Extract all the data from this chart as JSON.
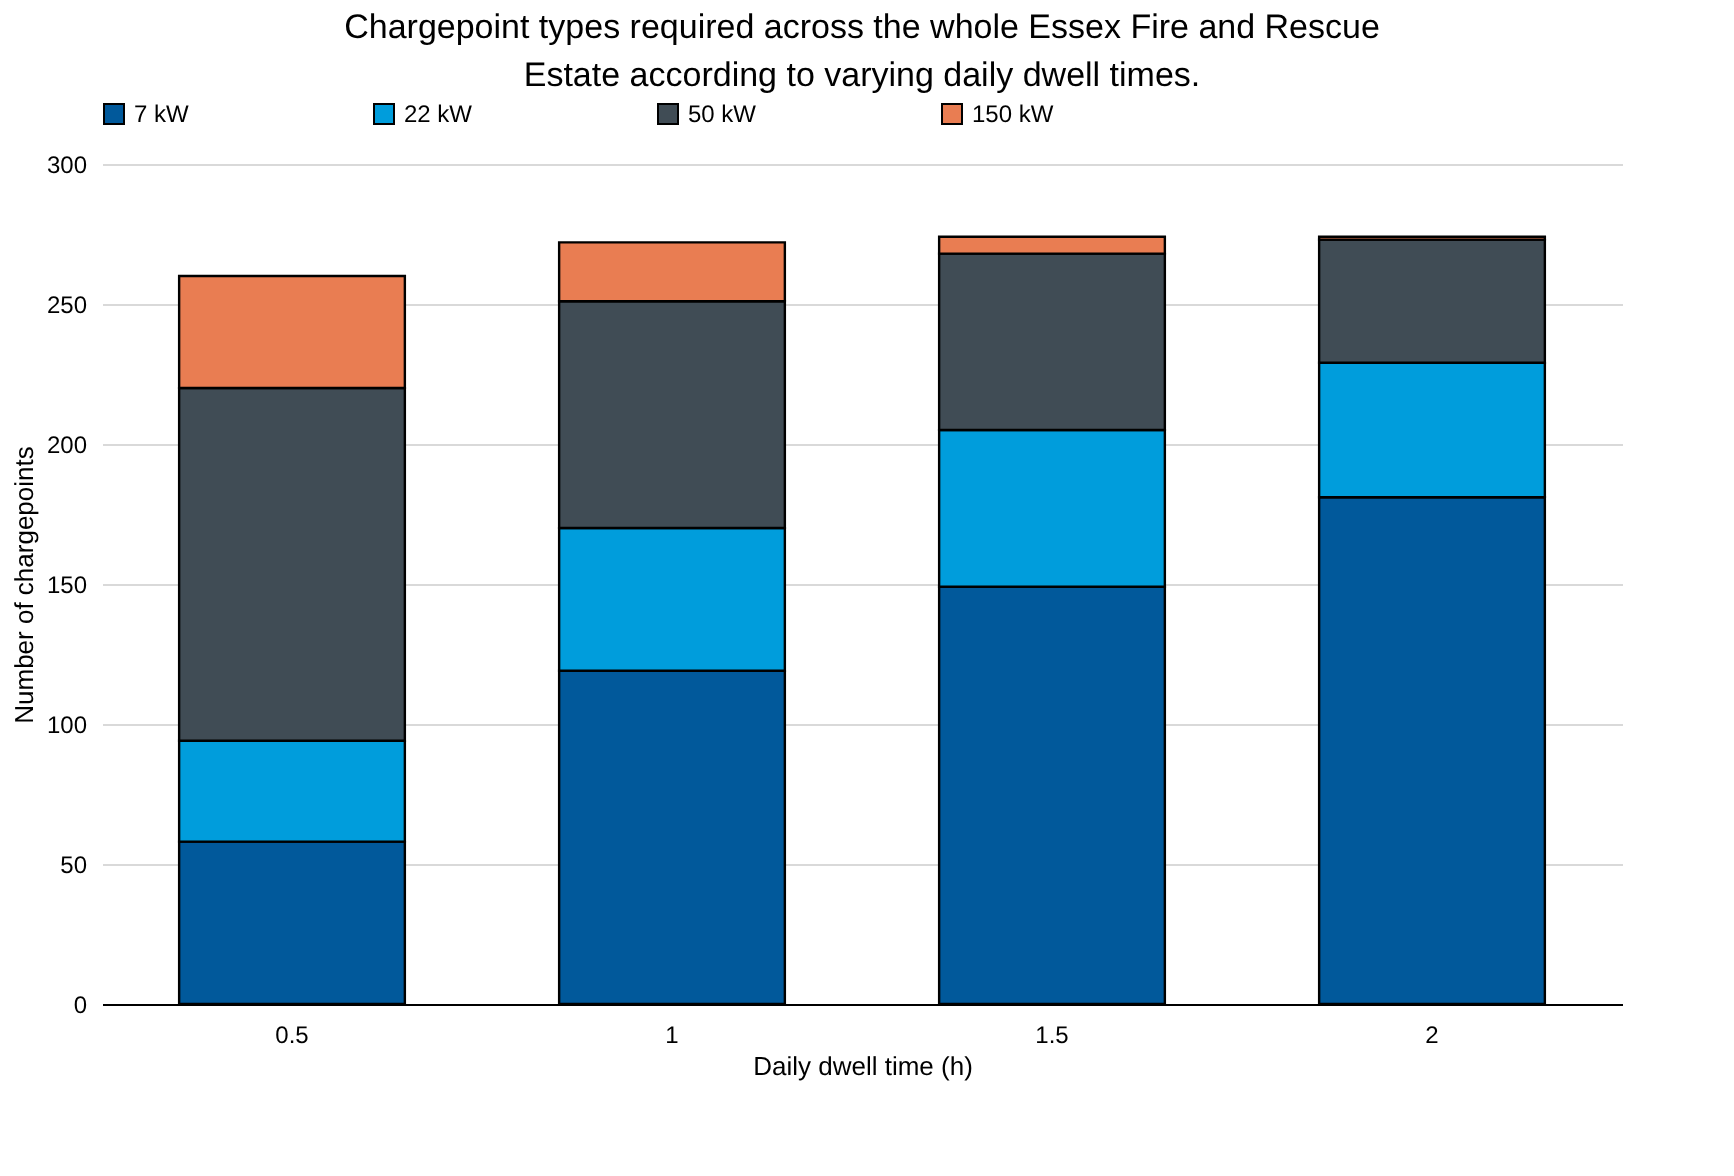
{
  "chart_data": {
    "type": "bar",
    "title": "Chargepoint types required across the whole Essex Fire and Rescue Estate according to varying daily dwell times.",
    "xlabel": "Daily dwell time (h)",
    "ylabel": "Number of chargepoints",
    "categories": [
      "0.5",
      "1",
      "1.5",
      "2"
    ],
    "stacked": true,
    "series": [
      {
        "name": "7 kW",
        "color": "#01599b",
        "values": [
          58,
          119,
          149,
          181
        ]
      },
      {
        "name": "22 kW",
        "color": "#009ddc",
        "values": [
          36,
          51,
          56,
          48
        ]
      },
      {
        "name": "50 kW",
        "color": "#404c55",
        "values": [
          126,
          81,
          63,
          44
        ]
      },
      {
        "name": "150 kW",
        "color": "#e97d52",
        "values": [
          40,
          21,
          6,
          1
        ]
      }
    ],
    "ylim": [
      0,
      300
    ],
    "yticks": [
      0,
      50,
      100,
      150,
      200,
      250,
      300
    ],
    "grid": "y",
    "legend": "top"
  }
}
